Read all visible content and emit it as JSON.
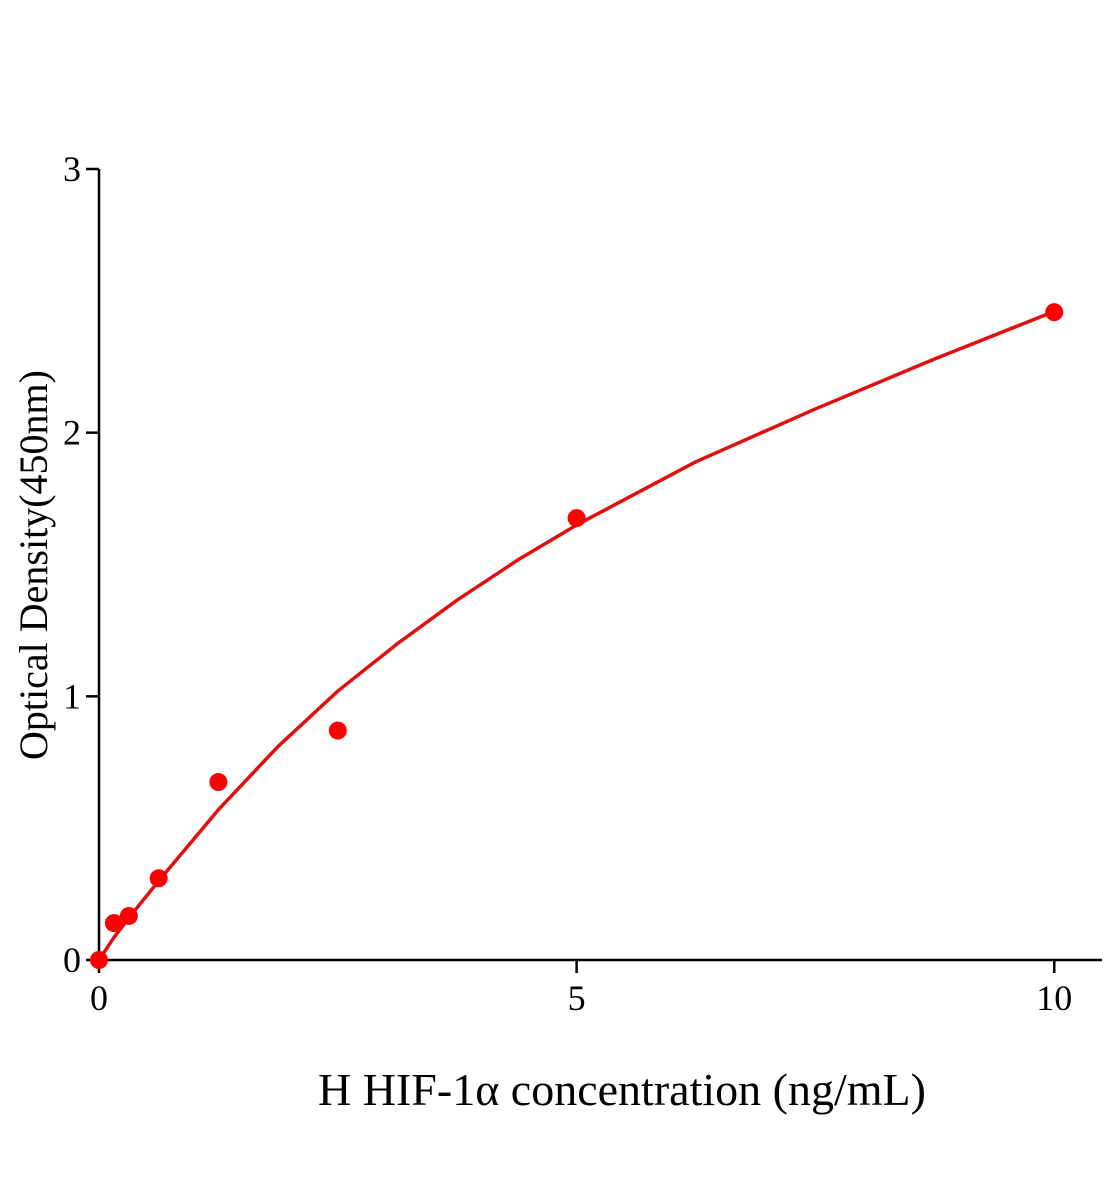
{
  "chart_data": {
    "type": "scatter",
    "x_label": "H HIF-1α concentration (ng/mL)",
    "y_label": "Optical Density(450nm)",
    "xlim": [
      0,
      10.5
    ],
    "ylim": [
      0,
      3
    ],
    "xticks": [
      0,
      5,
      10
    ],
    "yticks": [
      0,
      1,
      2,
      3
    ],
    "series": [
      {
        "type": "scatter",
        "color": "#ff0000",
        "x": [
          0,
          0.156,
          0.3125,
          0.625,
          1.25,
          2.5,
          5,
          10
        ],
        "values": [
          0,
          0.14,
          0.167,
          0.31,
          0.675,
          0.87,
          1.676,
          2.457
        ]
      },
      {
        "type": "line",
        "color": "#e01010",
        "x": [
          0,
          0.156,
          0.3125,
          0.625,
          1.25,
          1.875,
          2.5,
          3.125,
          3.75,
          4.375,
          5,
          6.25,
          7.5,
          8.75,
          10
        ],
        "values": [
          0,
          0.085,
          0.16,
          0.3,
          0.57,
          0.81,
          1.02,
          1.2,
          1.365,
          1.515,
          1.65,
          1.89,
          2.09,
          2.28,
          2.46
        ]
      }
    ]
  }
}
